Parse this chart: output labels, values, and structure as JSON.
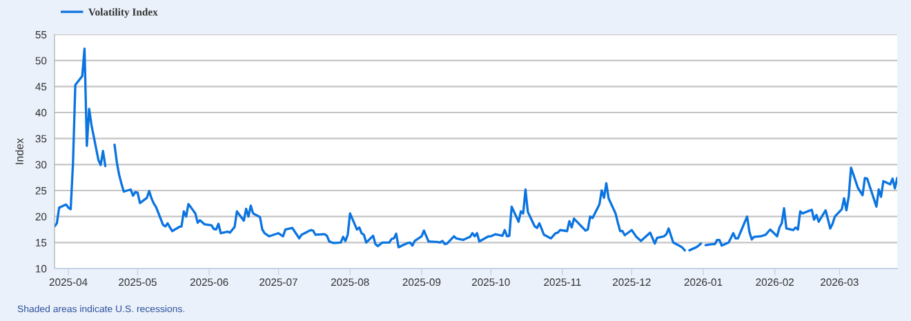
{
  "chart_data": {
    "type": "line",
    "ylabel": "Index",
    "legend": "top left",
    "grid": "y",
    "x": [
      "2025-03-26",
      "2025-03-27",
      "2025-03-28",
      "2025-03-31",
      "2025-04-01",
      "2025-04-02",
      "2025-04-03",
      "2025-04-04",
      "2025-04-07",
      "2025-04-08",
      "2025-04-09",
      "2025-04-10",
      "2025-04-11",
      "2025-04-14",
      "2025-04-15",
      "2025-04-16",
      "2025-04-17",
      "2025-04-18",
      "2025-04-21",
      "2025-04-22",
      "2025-04-23",
      "2025-04-24",
      "2025-04-25",
      "2025-04-28",
      "2025-04-29",
      "2025-04-30",
      "2025-05-01",
      "2025-05-02",
      "2025-05-05",
      "2025-05-06",
      "2025-05-07",
      "2025-05-08",
      "2025-05-09",
      "2025-05-12",
      "2025-05-13",
      "2025-05-14",
      "2025-05-15",
      "2025-05-16",
      "2025-05-19",
      "2025-05-20",
      "2025-05-21",
      "2025-05-22",
      "2025-05-23",
      "2025-05-26",
      "2025-05-27",
      "2025-05-28",
      "2025-05-30",
      "2025-06-02",
      "2025-06-03",
      "2025-06-04",
      "2025-06-05",
      "2025-06-06",
      "2025-06-09",
      "2025-06-10",
      "2025-06-12",
      "2025-06-13",
      "2025-06-16",
      "2025-06-17",
      "2025-06-18",
      "2025-06-19",
      "2025-06-20",
      "2025-06-23",
      "2025-06-24",
      "2025-06-25",
      "2025-06-27",
      "2025-07-01",
      "2025-07-03",
      "2025-07-04",
      "2025-07-07",
      "2025-07-10",
      "2025-07-11",
      "2025-07-15",
      "2025-07-16",
      "2025-07-17",
      "2025-07-21",
      "2025-07-22",
      "2025-07-23",
      "2025-07-25",
      "2025-07-28",
      "2025-07-29",
      "2025-07-30",
      "2025-07-31",
      "2025-08-01",
      "2025-08-04",
      "2025-08-05",
      "2025-08-06",
      "2025-08-07",
      "2025-08-08",
      "2025-08-11",
      "2025-08-12",
      "2025-08-13",
      "2025-08-15",
      "2025-08-18",
      "2025-08-19",
      "2025-08-20",
      "2025-08-21",
      "2025-08-22",
      "2025-08-25",
      "2025-08-26",
      "2025-08-27",
      "2025-08-28",
      "2025-08-29",
      "2025-09-01",
      "2025-09-02",
      "2025-09-04",
      "2025-09-08",
      "2025-09-09",
      "2025-09-10",
      "2025-09-11",
      "2025-09-12",
      "2025-09-15",
      "2025-09-16",
      "2025-09-19",
      "2025-09-22",
      "2025-09-23",
      "2025-09-24",
      "2025-09-25",
      "2025-09-26",
      "2025-09-30",
      "2025-10-01",
      "2025-10-03",
      "2025-10-06",
      "2025-10-07",
      "2025-10-08",
      "2025-10-09",
      "2025-10-10",
      "2025-10-13",
      "2025-10-14",
      "2025-10-15",
      "2025-10-16",
      "2025-10-17",
      "2025-10-20",
      "2025-10-21",
      "2025-10-22",
      "2025-10-24",
      "2025-10-27",
      "2025-10-29",
      "2025-10-30",
      "2025-10-31",
      "2025-11-03",
      "2025-11-04",
      "2025-11-05",
      "2025-11-06",
      "2025-11-11",
      "2025-11-12",
      "2025-11-13",
      "2025-11-14",
      "2025-11-17",
      "2025-11-18",
      "2025-11-19",
      "2025-11-20",
      "2025-11-21",
      "2025-11-24",
      "2025-11-25",
      "2025-11-26",
      "2025-11-27",
      "2025-11-28",
      "2025-12-01",
      "2025-12-03",
      "2025-12-05",
      "2025-12-09",
      "2025-12-11",
      "2025-12-12",
      "2025-12-15",
      "2025-12-16",
      "2025-12-17",
      "2025-12-19",
      "2025-12-22",
      "2025-12-23",
      "2025-12-24",
      "2025-12-25",
      "2025-12-26",
      "2025-12-29",
      "2025-12-30",
      "2025-12-31",
      "2026-01-01",
      "2026-01-02",
      "2026-01-05",
      "2026-01-06",
      "2026-01-07",
      "2026-01-08",
      "2026-01-09",
      "2026-01-12",
      "2026-01-14",
      "2026-01-15",
      "2026-01-16",
      "2026-01-20",
      "2026-01-21",
      "2026-01-22",
      "2026-01-23",
      "2026-01-26",
      "2026-01-28",
      "2026-01-30",
      "2026-02-02",
      "2026-02-03",
      "2026-02-04",
      "2026-02-05",
      "2026-02-06",
      "2026-02-09",
      "2026-02-10",
      "2026-02-11",
      "2026-02-12",
      "2026-02-13",
      "2026-02-17",
      "2026-02-18",
      "2026-02-19",
      "2026-02-20",
      "2026-02-23",
      "2026-02-25",
      "2026-02-26",
      "2026-02-27",
      "2026-03-02",
      "2026-03-03",
      "2026-03-04",
      "2026-03-05",
      "2026-03-06",
      "2026-03-09",
      "2026-03-11",
      "2026-03-12",
      "2026-03-13",
      "2026-03-17",
      "2026-03-18",
      "2026-03-19",
      "2026-03-20",
      "2026-03-23",
      "2026-03-24",
      "2026-03-25",
      "2026-03-26"
    ],
    "series": [
      {
        "name": "Volatility Index",
        "color": "#0b74e0",
        "values": [
          18.1,
          18.7,
          21.7,
          22.3,
          21.7,
          21.4,
          30.2,
          45.3,
          47.0,
          52.3,
          33.6,
          40.7,
          37.6,
          30.9,
          29.9,
          32.6,
          29.7,
          null,
          33.8,
          30.4,
          28.0,
          26.3,
          24.8,
          25.2,
          24.0,
          24.7,
          24.6,
          22.6,
          23.6,
          24.9,
          23.5,
          22.5,
          21.8,
          18.4,
          18.1,
          18.7,
          17.9,
          17.2,
          18.0,
          18.1,
          21.0,
          20.0,
          22.4,
          20.6,
          18.8,
          19.3,
          18.5,
          18.3,
          17.6,
          17.5,
          18.6,
          16.8,
          17.1,
          16.9,
          18.0,
          21.0,
          19.2,
          21.5,
          20.0,
          22.1,
          20.6,
          19.9,
          17.5,
          16.8,
          16.2,
          16.8,
          16.2,
          17.5,
          17.8,
          15.8,
          16.5,
          17.4,
          17.3,
          16.5,
          16.6,
          16.3,
          15.2,
          14.9,
          15.0,
          16.1,
          15.3,
          16.5,
          20.6,
          17.5,
          17.9,
          16.8,
          16.5,
          15.0,
          16.3,
          14.7,
          14.3,
          15.0,
          15.0,
          15.7,
          15.8,
          16.7,
          14.1,
          14.7,
          14.9,
          15.0,
          14.4,
          15.3,
          16.2,
          17.3,
          15.2,
          15.1,
          15.0,
          15.3,
          14.7,
          14.8,
          16.2,
          15.8,
          15.5,
          16.1,
          16.8,
          16.2,
          16.8,
          15.2,
          16.2,
          16.2,
          16.6,
          16.3,
          17.4,
          16.2,
          16.3,
          21.9,
          19.0,
          21.0,
          20.6,
          25.2,
          20.9,
          18.1,
          17.8,
          18.7,
          16.5,
          15.8,
          16.8,
          16.9,
          17.4,
          17.2,
          19.1,
          17.9,
          19.6,
          17.3,
          17.5,
          20.0,
          19.7,
          22.3,
          25.0,
          23.6,
          26.4,
          23.5,
          20.6,
          18.8,
          17.2,
          17.2,
          16.4,
          17.4,
          16.1,
          15.3,
          16.9,
          14.8,
          15.9,
          16.2,
          16.6,
          17.7,
          15.0,
          14.3,
          14.0,
          13.5,
          null,
          13.5,
          14.1,
          14.4,
          14.8,
          null,
          14.5,
          14.7,
          14.7,
          15.5,
          15.5,
          14.4,
          15.0,
          16.8,
          15.8,
          15.8,
          20.0,
          17.0,
          15.6,
          16.1,
          16.2,
          16.5,
          17.5,
          16.2,
          17.9,
          18.7,
          21.6,
          17.7,
          17.4,
          17.9,
          17.5,
          21.0,
          20.6,
          21.3,
          19.4,
          20.3,
          19.0,
          21.2,
          17.7,
          18.6,
          20.0,
          21.4,
          23.5,
          21.2,
          23.8,
          29.4,
          25.5,
          24.1,
          27.4,
          27.3,
          21.9,
          25.2,
          23.8,
          26.8,
          26.2,
          27.3,
          25.4,
          27.4
        ]
      }
    ],
    "xlim": [
      "2025-03-26",
      "2026-03-26"
    ],
    "xticks": [
      {
        "value": "2025-04-01",
        "label": "2025-04"
      },
      {
        "value": "2025-05-01",
        "label": "2025-05"
      },
      {
        "value": "2025-06-01",
        "label": "2025-06"
      },
      {
        "value": "2025-07-01",
        "label": "2025-07"
      },
      {
        "value": "2025-08-01",
        "label": "2025-08"
      },
      {
        "value": "2025-09-01",
        "label": "2025-09"
      },
      {
        "value": "2025-10-01",
        "label": "2025-10"
      },
      {
        "value": "2025-11-01",
        "label": "2025-11"
      },
      {
        "value": "2025-12-01",
        "label": "2025-12"
      },
      {
        "value": "2026-01-01",
        "label": "2026-01"
      },
      {
        "value": "2026-02-01",
        "label": "2026-02"
      },
      {
        "value": "2026-03-01",
        "label": "2026-03"
      }
    ],
    "ylim": [
      10,
      55
    ],
    "yticks": [
      10,
      15,
      20,
      25,
      30,
      35,
      40,
      45,
      50,
      55
    ],
    "annotations": [
      "Shaded areas indicate U.S. recessions."
    ]
  }
}
